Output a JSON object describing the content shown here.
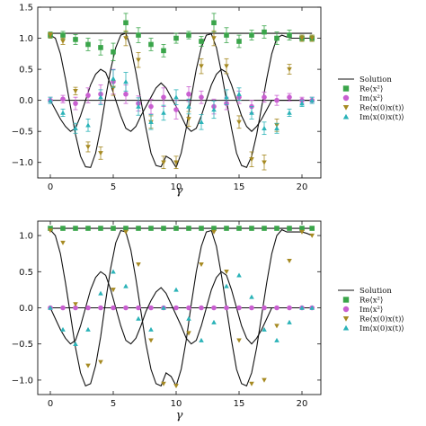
{
  "chart_data": [
    {
      "type": "line",
      "xlabel": "γ",
      "ylabel": "",
      "xlim": [
        -1,
        21.5
      ],
      "ylim": [
        -1.25,
        1.5
      ],
      "xticks": [
        0,
        5,
        10,
        15,
        20
      ],
      "xtick_labels": [
        "0",
        "5",
        "10",
        "15",
        "20"
      ],
      "yticks": [
        -1.0,
        -0.5,
        0.0,
        0.5,
        1.0,
        1.5
      ],
      "ytick_labels": [
        "−1.0",
        "−0.5",
        "0.0",
        "0.5",
        "1.0",
        "1.5"
      ],
      "grid": false,
      "legend_position": "right",
      "legend": [
        "Solution",
        "Re⟨x²⟩",
        "Im⟨x²⟩",
        "Re⟨x(0)x(t)⟩",
        "Im⟨x(0)x(t)⟩"
      ],
      "series": [
        {
          "name": "Solution",
          "style": "line",
          "color": "#111111",
          "x": [
            0,
            0.4,
            0.8,
            1.2,
            1.6,
            2.0,
            2.4,
            2.8,
            3.2,
            3.6,
            4.0,
            4.4,
            4.8,
            5.2,
            5.6,
            6.0,
            6.4,
            6.8,
            7.2,
            7.6,
            8.0,
            8.4,
            8.8,
            9.2,
            9.6,
            10.0,
            10.4,
            10.8,
            11.2,
            11.6,
            12.0,
            12.4,
            12.8,
            13.2,
            13.6,
            14.0,
            14.4,
            14.8,
            15.2,
            15.6,
            16.0,
            16.4,
            16.8,
            17.2,
            17.6,
            18.0,
            18.4,
            18.8,
            19.2,
            19.6,
            20.0,
            20.4,
            20.8
          ],
          "y_real": [
            1.05,
            1.0,
            0.75,
            0.35,
            -0.1,
            -0.55,
            -0.9,
            -1.07,
            -1.08,
            -0.85,
            -0.45,
            0.05,
            0.5,
            0.85,
            1.05,
            1.08,
            0.85,
            0.45,
            0.0,
            -0.45,
            -0.85,
            -1.05,
            -1.07,
            -0.9,
            -0.95,
            -1.08,
            -0.85,
            -0.45,
            0.05,
            0.5,
            0.85,
            1.05,
            1.07,
            0.85,
            0.45,
            0.0,
            -0.45,
            -0.85,
            -1.05,
            -1.08,
            -0.9,
            -0.55,
            -0.1,
            0.35,
            0.75,
            1.0,
            1.05,
            1.02,
            1.0,
            1.0,
            1.0,
            1.0,
            1.0
          ],
          "y_imag": [
            0.0,
            -0.15,
            -0.3,
            -0.42,
            -0.5,
            -0.45,
            -0.25,
            0.0,
            0.25,
            0.42,
            0.5,
            0.45,
            0.25,
            0.0,
            -0.25,
            -0.45,
            -0.5,
            -0.42,
            -0.25,
            -0.1,
            0.05,
            0.2,
            0.28,
            0.2,
            0.05,
            -0.1,
            -0.25,
            -0.42,
            -0.5,
            -0.45,
            -0.25,
            0.0,
            0.25,
            0.42,
            0.5,
            0.45,
            0.25,
            0.0,
            -0.25,
            -0.42,
            -0.5,
            -0.42,
            -0.3,
            -0.15,
            0.0,
            0.0,
            0.0,
            0.0,
            0.0,
            0.0,
            0.0,
            0.0,
            0.0
          ],
          "y_const": 1.08,
          "y_zero": 0.0
        },
        {
          "name": "Re⟨x²⟩",
          "marker": "square",
          "color": "#3aa54a",
          "x": [
            0,
            1,
            2,
            3,
            4,
            5,
            6,
            7,
            8,
            9,
            10,
            11,
            12,
            13,
            14,
            15,
            16,
            17,
            18,
            19,
            20,
            20.8
          ],
          "y": [
            1.05,
            1.05,
            0.98,
            0.9,
            0.85,
            0.78,
            1.25,
            1.05,
            0.9,
            0.8,
            1.0,
            1.05,
            0.95,
            1.25,
            1.05,
            0.95,
            1.05,
            1.1,
            1.0,
            1.05,
            1.0,
            1.0
          ],
          "yerr": [
            0.05,
            0.06,
            0.08,
            0.1,
            0.12,
            0.14,
            0.15,
            0.12,
            0.1,
            0.1,
            0.08,
            0.06,
            0.08,
            0.15,
            0.12,
            0.1,
            0.08,
            0.1,
            0.1,
            0.08,
            0.05,
            0.05
          ]
        },
        {
          "name": "Im⟨x²⟩",
          "marker": "circle",
          "color": "#c95fd1",
          "x": [
            0,
            1,
            2,
            3,
            4,
            5,
            6,
            7,
            8,
            9,
            10,
            11,
            12,
            13,
            14,
            15,
            16,
            17,
            18,
            19,
            20,
            20.8
          ],
          "y": [
            0.0,
            0.02,
            -0.05,
            0.08,
            0.1,
            0.3,
            0.1,
            -0.05,
            -0.1,
            0.05,
            -0.15,
            0.1,
            0.05,
            -0.1,
            -0.05,
            0.05,
            -0.1,
            0.05,
            0.0,
            0.05,
            0.0,
            0.0
          ],
          "yerr": [
            0.05,
            0.06,
            0.1,
            0.12,
            0.15,
            0.2,
            0.15,
            0.12,
            0.12,
            0.15,
            0.15,
            0.12,
            0.1,
            0.12,
            0.1,
            0.1,
            0.1,
            0.08,
            0.08,
            0.06,
            0.05,
            0.05
          ]
        },
        {
          "name": "Re⟨x(0)x(t)⟩",
          "marker": "triangle-down",
          "color": "#a68a22",
          "x": [
            0,
            1,
            2,
            3,
            4,
            5,
            6,
            7,
            8,
            9,
            10,
            11,
            12,
            13,
            14,
            15,
            16,
            17,
            18,
            19,
            20,
            20.8
          ],
          "y": [
            1.05,
            0.95,
            0.15,
            -0.75,
            -0.85,
            0.2,
            1.0,
            0.65,
            -0.35,
            -1.0,
            -1.0,
            -0.3,
            0.55,
            1.0,
            0.55,
            -0.35,
            -0.95,
            -1.0,
            -0.4,
            0.5,
            1.0,
            1.0
          ],
          "yerr": [
            0.04,
            0.05,
            0.06,
            0.08,
            0.1,
            0.12,
            0.12,
            0.12,
            0.1,
            0.1,
            0.1,
            0.12,
            0.12,
            0.12,
            0.12,
            0.1,
            0.12,
            0.12,
            0.1,
            0.08,
            0.05,
            0.05
          ]
        },
        {
          "name": "Im⟨x(0)x(t)⟩",
          "marker": "triangle-up",
          "color": "#2bb3b8",
          "x": [
            0,
            1,
            2,
            3,
            4,
            5,
            6,
            7,
            8,
            9,
            10,
            11,
            12,
            13,
            14,
            15,
            16,
            17,
            18,
            19,
            20,
            20.8
          ],
          "y": [
            0.0,
            -0.2,
            -0.45,
            -0.4,
            0.05,
            0.35,
            0.3,
            -0.1,
            -0.35,
            -0.2,
            0.05,
            -0.1,
            -0.35,
            -0.15,
            0.05,
            0.1,
            -0.2,
            -0.45,
            -0.45,
            -0.2,
            -0.05,
            0.0
          ],
          "yerr": [
            0.05,
            0.06,
            0.08,
            0.1,
            0.12,
            0.14,
            0.15,
            0.14,
            0.12,
            0.12,
            0.12,
            0.12,
            0.12,
            0.14,
            0.12,
            0.1,
            0.1,
            0.1,
            0.08,
            0.06,
            0.05,
            0.05
          ]
        }
      ]
    },
    {
      "type": "line",
      "xlabel": "γ",
      "ylabel": "",
      "xlim": [
        -1,
        21.5
      ],
      "ylim": [
        -1.2,
        1.2
      ],
      "xticks": [
        0,
        5,
        10,
        15,
        20
      ],
      "xtick_labels": [
        "0",
        "5",
        "10",
        "15",
        "20"
      ],
      "yticks": [
        -1.0,
        -0.5,
        0.0,
        0.5,
        1.0
      ],
      "ytick_labels": [
        "−1.0",
        "−0.5",
        "0.0",
        "0.5",
        "1.0"
      ],
      "grid": false,
      "legend_position": "right",
      "legend": [
        "Solution",
        "Re⟨x²⟩",
        "Im⟨x²⟩",
        "Re⟨x(0)x(t)⟩",
        "Im⟨x(0)x(t)⟩"
      ],
      "series": [
        {
          "name": "Solution",
          "style": "line",
          "color": "#111111",
          "x": [
            0,
            0.4,
            0.8,
            1.2,
            1.6,
            2.0,
            2.4,
            2.8,
            3.2,
            3.6,
            4.0,
            4.4,
            4.8,
            5.2,
            5.6,
            6.0,
            6.4,
            6.8,
            7.2,
            7.6,
            8.0,
            8.4,
            8.8,
            9.2,
            9.6,
            10.0,
            10.4,
            10.8,
            11.2,
            11.6,
            12.0,
            12.4,
            12.8,
            13.2,
            13.6,
            14.0,
            14.4,
            14.8,
            15.2,
            15.6,
            16.0,
            16.4,
            16.8,
            17.2,
            17.6,
            18.0,
            18.4,
            18.8,
            19.2,
            19.6,
            20.0,
            20.4,
            20.8
          ],
          "y_real": [
            1.08,
            1.0,
            0.75,
            0.35,
            -0.1,
            -0.55,
            -0.9,
            -1.08,
            -1.05,
            -0.8,
            -0.4,
            0.1,
            0.55,
            0.9,
            1.07,
            1.05,
            0.8,
            0.4,
            -0.05,
            -0.5,
            -0.85,
            -1.05,
            -1.08,
            -0.9,
            -0.95,
            -1.08,
            -0.85,
            -0.45,
            0.05,
            0.5,
            0.85,
            1.05,
            1.07,
            0.85,
            0.45,
            0.0,
            -0.45,
            -0.85,
            -1.05,
            -1.08,
            -0.9,
            -0.55,
            -0.1,
            0.35,
            0.75,
            1.0,
            1.08,
            1.05,
            1.05,
            1.05,
            1.05,
            1.03,
            1.0
          ],
          "y_imag": [
            0.0,
            -0.15,
            -0.3,
            -0.42,
            -0.5,
            -0.45,
            -0.25,
            0.0,
            0.25,
            0.42,
            0.5,
            0.45,
            0.25,
            0.0,
            -0.25,
            -0.45,
            -0.5,
            -0.42,
            -0.25,
            -0.05,
            0.1,
            0.22,
            0.28,
            0.2,
            0.05,
            -0.1,
            -0.25,
            -0.42,
            -0.5,
            -0.45,
            -0.25,
            0.0,
            0.25,
            0.42,
            0.5,
            0.45,
            0.25,
            0.0,
            -0.25,
            -0.42,
            -0.5,
            -0.42,
            -0.3,
            -0.15,
            0.0,
            0.0,
            0.0,
            0.0,
            0.0,
            0.0,
            0.0,
            0.0,
            0.0
          ],
          "y_const": 1.1,
          "y_zero": 0.0
        },
        {
          "name": "Re⟨x²⟩",
          "marker": "square",
          "color": "#3aa54a",
          "x": [
            0,
            1,
            2,
            3,
            4,
            5,
            6,
            7,
            8,
            9,
            10,
            11,
            12,
            13,
            14,
            15,
            16,
            17,
            18,
            19,
            20,
            20.8
          ],
          "y": [
            1.1,
            1.1,
            1.1,
            1.1,
            1.1,
            1.1,
            1.1,
            1.1,
            1.1,
            1.1,
            1.1,
            1.1,
            1.1,
            1.1,
            1.1,
            1.1,
            1.1,
            1.1,
            1.1,
            1.1,
            1.1,
            1.1
          ],
          "yerr": [
            0.01,
            0.01,
            0.01,
            0.01,
            0.01,
            0.01,
            0.01,
            0.01,
            0.01,
            0.01,
            0.01,
            0.01,
            0.01,
            0.01,
            0.01,
            0.01,
            0.01,
            0.01,
            0.01,
            0.01,
            0.01,
            0.01
          ]
        },
        {
          "name": "Im⟨x²⟩",
          "marker": "circle",
          "color": "#c95fd1",
          "x": [
            0,
            1,
            2,
            3,
            4,
            5,
            6,
            7,
            8,
            9,
            10,
            11,
            12,
            13,
            14,
            15,
            16,
            17,
            18,
            19,
            20,
            20.8
          ],
          "y": [
            0.0,
            0.0,
            0.0,
            0.0,
            0.0,
            0.0,
            0.0,
            0.0,
            0.0,
            0.0,
            0.0,
            0.0,
            0.0,
            0.0,
            0.0,
            0.0,
            0.0,
            0.0,
            0.0,
            0.0,
            0.0,
            0.0
          ],
          "yerr": [
            0.01,
            0.01,
            0.01,
            0.01,
            0.01,
            0.01,
            0.01,
            0.01,
            0.01,
            0.01,
            0.01,
            0.01,
            0.01,
            0.01,
            0.01,
            0.01,
            0.01,
            0.01,
            0.01,
            0.01,
            0.01,
            0.01
          ]
        },
        {
          "name": "Re⟨x(0)x(t)⟩",
          "marker": "triangle-down",
          "color": "#a68a22",
          "x": [
            0,
            1,
            2,
            3,
            4,
            5,
            6,
            7,
            8,
            9,
            10,
            11,
            12,
            13,
            14,
            15,
            16,
            17,
            18,
            19,
            20,
            20.8
          ],
          "y": [
            1.07,
            0.9,
            0.05,
            -0.8,
            -0.75,
            0.25,
            1.05,
            0.6,
            -0.45,
            -1.05,
            -1.08,
            -0.35,
            0.6,
            1.05,
            0.5,
            -0.45,
            -1.05,
            -1.0,
            -0.25,
            0.65,
            1.05,
            1.0
          ],
          "yerr": [
            0.01,
            0.01,
            0.01,
            0.01,
            0.01,
            0.01,
            0.01,
            0.01,
            0.01,
            0.01,
            0.01,
            0.01,
            0.01,
            0.01,
            0.01,
            0.01,
            0.01,
            0.01,
            0.01,
            0.01,
            0.01,
            0.01
          ]
        },
        {
          "name": "Im⟨x(0)x(t)⟩",
          "marker": "triangle-up",
          "color": "#2bb3b8",
          "x": [
            0,
            1,
            2,
            3,
            4,
            5,
            6,
            7,
            8,
            9,
            10,
            11,
            12,
            13,
            14,
            15,
            16,
            17,
            18,
            19,
            20,
            20.8
          ],
          "y": [
            0.0,
            -0.3,
            -0.5,
            -0.3,
            0.2,
            0.5,
            0.3,
            -0.15,
            -0.3,
            0.0,
            0.25,
            -0.15,
            -0.45,
            -0.2,
            0.3,
            0.45,
            0.15,
            -0.3,
            -0.45,
            -0.2,
            0.0,
            0.0
          ],
          "yerr": [
            0.01,
            0.01,
            0.01,
            0.01,
            0.01,
            0.01,
            0.01,
            0.01,
            0.01,
            0.01,
            0.01,
            0.01,
            0.01,
            0.01,
            0.01,
            0.01,
            0.01,
            0.01,
            0.01,
            0.01,
            0.01,
            0.01
          ]
        }
      ]
    }
  ]
}
